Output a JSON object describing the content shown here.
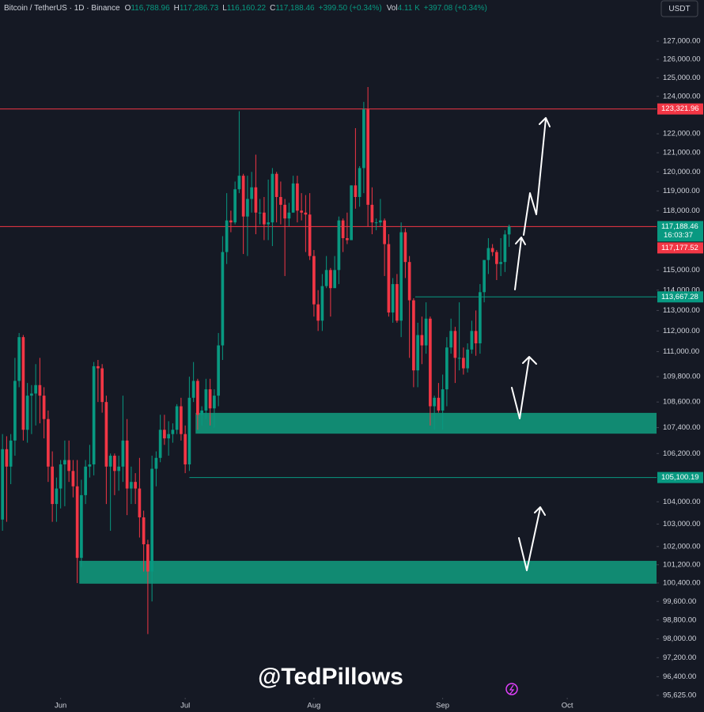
{
  "chart_data": {
    "type": "candlestick",
    "symbol": "Bitcoin / TetherUS · 1D · Binance",
    "ohlc_legend": [
      {
        "key": "O",
        "value": "116,788.96"
      },
      {
        "key": "H",
        "value": "117,286.73"
      },
      {
        "key": "L",
        "value": "116,160.22"
      },
      {
        "key": "C",
        "value": "117,188.46"
      }
    ],
    "change": "+399.50 (+0.34%)",
    "volume_key": "Vol",
    "volume": "4.11 K",
    "volume_change": "+397.08 (+0.34%)",
    "currency": "USDT",
    "watermark": "@TedPillows",
    "countdown": "16:03:37",
    "up_color": "#089981",
    "down_color": "#f23645",
    "log_scale": true,
    "grid": false,
    "xlim": [
      -0.6,
      157.5
    ],
    "xticks": [
      {
        "value": 14,
        "label": "Jun"
      },
      {
        "value": 44,
        "label": "Jul"
      },
      {
        "value": 75,
        "label": "Aug"
      },
      {
        "value": 106,
        "label": "Sep"
      },
      {
        "value": 136,
        "label": "Oct"
      }
    ],
    "ylim": [
      95590,
      129290
    ],
    "yticks": [
      {
        "value": 127000,
        "label": "127,000.00"
      },
      {
        "value": 126000,
        "label": "126,000.00"
      },
      {
        "value": 125000,
        "label": "125,000.00"
      },
      {
        "value": 124000,
        "label": "124,000.00"
      },
      {
        "value": 122000,
        "label": "122,000.00"
      },
      {
        "value": 121000,
        "label": "121,000.00"
      },
      {
        "value": 120000,
        "label": "120,000.00"
      },
      {
        "value": 119000,
        "label": "119,000.00"
      },
      {
        "value": 118000,
        "label": "118,000.00"
      },
      {
        "value": 115000,
        "label": "115,000.00"
      },
      {
        "value": 114000,
        "label": "114,000.00"
      },
      {
        "value": 113000,
        "label": "113,000.00"
      },
      {
        "value": 112000,
        "label": "112,000.00"
      },
      {
        "value": 111000,
        "label": "111,000.00"
      },
      {
        "value": 109800,
        "label": "109,800.00"
      },
      {
        "value": 108600,
        "label": "108,600.00"
      },
      {
        "value": 107400,
        "label": "107,400.00"
      },
      {
        "value": 106200,
        "label": "106,200.00"
      },
      {
        "value": 104000,
        "label": "104,000.00"
      },
      {
        "value": 103000,
        "label": "103,000.00"
      },
      {
        "value": 102000,
        "label": "102,000.00"
      },
      {
        "value": 101200,
        "label": "101,200.00"
      },
      {
        "value": 100400,
        "label": "100,400.00"
      },
      {
        "value": 99600,
        "label": "99,600.00"
      },
      {
        "value": 98800,
        "label": "98,800.00"
      },
      {
        "value": 98000,
        "label": "98,000.00"
      },
      {
        "value": 97200,
        "label": "97,200.00"
      },
      {
        "value": 96400,
        "label": "96,400.00"
      },
      {
        "value": 95625,
        "label": "95,625.00"
      }
    ],
    "open": [
      103200,
      106400,
      105600,
      106800,
      109600,
      111700,
      107300,
      108900,
      109000,
      109400,
      108900,
      107800,
      105600,
      103900,
      104600,
      105700,
      105900,
      105400,
      104700,
      101500,
      104300,
      105600,
      105700,
      110300,
      110200,
      108600,
      105600,
      106100,
      105400,
      105600,
      106800,
      104600,
      104900,
      104600,
      103300,
      102100,
      100900,
      105500,
      106000,
      107300,
      106900,
      107100,
      107300,
      108400,
      107100,
      105700,
      108800,
      109600,
      108000,
      108200,
      109200,
      108300,
      108900,
      111300,
      115900,
      117500,
      117400,
      119100,
      119800,
      117700,
      118600,
      119200,
      117900,
      117900,
      117300,
      117400,
      119900,
      118700,
      118300,
      117600,
      117900,
      119400,
      118000,
      117900,
      117800,
      115700,
      113300,
      112500,
      114200,
      115000,
      114100,
      115000,
      117500,
      116600,
      116500,
      119300,
      118700,
      120200,
      123300,
      118300,
      117400,
      117400,
      117500,
      116300,
      112900,
      114300,
      112500,
      116900,
      115400,
      113500,
      110100,
      111800,
      111300,
      112600,
      108400,
      108800,
      108200,
      109200,
      111200,
      112000,
      110700,
      110700,
      110200,
      111100,
      112000,
      111400,
      113900,
      115500,
      116100,
      115900,
      115300,
      115400,
      116788.96
    ],
    "high": [
      107100,
      107000,
      107100,
      110700,
      111900,
      111800,
      109500,
      109400,
      110400,
      110700,
      109300,
      108200,
      106300,
      105100,
      105900,
      106800,
      106800,
      105900,
      105900,
      105000,
      105900,
      106600,
      110500,
      110600,
      110400,
      108900,
      106200,
      106200,
      106100,
      108900,
      107800,
      105600,
      105300,
      106000,
      103600,
      102300,
      106100,
      106300,
      108000,
      108000,
      107700,
      107600,
      108500,
      108800,
      107500,
      109800,
      110500,
      109700,
      108400,
      109700,
      109700,
      109200,
      111900,
      116700,
      118900,
      118000,
      119500,
      123200,
      119900,
      119800,
      120000,
      120900,
      118600,
      118700,
      119600,
      120200,
      120000,
      119500,
      118600,
      118400,
      119800,
      119800,
      118900,
      118800,
      118900,
      116000,
      114000,
      114800,
      115700,
      115100,
      115700,
      117700,
      117600,
      117900,
      119300,
      122300,
      120300,
      123700,
      124500,
      119200,
      117600,
      118600,
      117600,
      116800,
      114600,
      114800,
      117400,
      117100,
      115700,
      113600,
      112400,
      112700,
      113400,
      112700,
      108900,
      109500,
      109900,
      111700,
      112600,
      112200,
      113400,
      111200,
      111400,
      112500,
      113000,
      114300,
      115500,
      116600,
      116300,
      116000,
      116600,
      117000,
      117286.73
    ],
    "low": [
      102700,
      103100,
      104800,
      106100,
      109300,
      106800,
      106700,
      107100,
      107500,
      107600,
      106900,
      104900,
      103100,
      103100,
      103700,
      103800,
      104900,
      104200,
      100400,
      101100,
      103900,
      105100,
      105200,
      108600,
      108100,
      103900,
      102700,
      104300,
      104500,
      104900,
      103400,
      103900,
      103900,
      102400,
      100900,
      98200,
      99600,
      104700,
      105800,
      106600,
      106100,
      106700,
      107100,
      106800,
      105300,
      105400,
      108600,
      107300,
      107500,
      107800,
      107500,
      107400,
      108400,
      110600,
      115300,
      116900,
      117300,
      118900,
      115800,
      115700,
      117900,
      116800,
      117300,
      116500,
      116500,
      116200,
      117400,
      117300,
      114700,
      117200,
      117900,
      117400,
      117500,
      115900,
      115500,
      112700,
      112000,
      112000,
      114100,
      112700,
      114100,
      114300,
      115900,
      116300,
      116500,
      118100,
      118200,
      118900,
      117200,
      116800,
      117000,
      117200,
      114700,
      112700,
      112400,
      112400,
      111700,
      114600,
      110700,
      109300,
      109300,
      110400,
      110900,
      107500,
      107300,
      108100,
      107300,
      108400,
      110900,
      109500,
      110100,
      109900,
      110000,
      110900,
      110800,
      110900,
      113400,
      114800,
      115700,
      114500,
      114700,
      114900,
      116160.22
    ],
    "close": [
      106400,
      105600,
      106800,
      109600,
      111700,
      107300,
      108900,
      109000,
      109400,
      108900,
      107800,
      105600,
      103900,
      104600,
      105700,
      105900,
      105400,
      104700,
      101500,
      104300,
      105600,
      105700,
      110300,
      110200,
      108600,
      105600,
      106100,
      105400,
      105600,
      106800,
      104600,
      104900,
      104600,
      103300,
      102100,
      100900,
      105500,
      106000,
      107300,
      106900,
      107100,
      107300,
      108400,
      107100,
      105700,
      108800,
      109600,
      108000,
      108200,
      109200,
      108300,
      108900,
      111300,
      115900,
      117500,
      117400,
      119100,
      119800,
      117700,
      118600,
      119200,
      117900,
      117900,
      117300,
      117400,
      119900,
      118700,
      118300,
      117600,
      117900,
      119400,
      118000,
      117900,
      117800,
      115700,
      113300,
      112500,
      114200,
      115000,
      114100,
      115000,
      117500,
      116600,
      116500,
      119300,
      118700,
      120200,
      123300,
      118300,
      117400,
      117400,
      117500,
      116300,
      112900,
      114300,
      112500,
      116900,
      115400,
      113500,
      110100,
      111800,
      111300,
      112600,
      108400,
      108800,
      108200,
      109200,
      111200,
      112000,
      110700,
      110700,
      110200,
      111100,
      112000,
      111400,
      113900,
      115500,
      116100,
      115900,
      115300,
      115400,
      116788.96,
      117188.46
    ],
    "levels": [
      {
        "value": 123321.96,
        "label": "123,321.96",
        "color": "#f23645"
      },
      {
        "value": 117188.46,
        "label": "117,188.46",
        "color": "#f23645",
        "label_color": "#089981"
      },
      {
        "value": 113667.28,
        "label": "113,667.28",
        "color": "#089981",
        "from": 99.4
      },
      {
        "value": 105100.19,
        "label": "105,100.19",
        "color": "#089981",
        "from": 45
      }
    ],
    "price_labels": [
      {
        "value": 117177.52,
        "label": "117,177.52",
        "color": "#f23645"
      }
    ],
    "zones": [
      {
        "from": 46.5,
        "low": 107120,
        "high": 108090,
        "color": "#118a72"
      },
      {
        "from": 18.5,
        "low": 100370,
        "high": 101370,
        "color": "#118a72"
      }
    ]
  }
}
